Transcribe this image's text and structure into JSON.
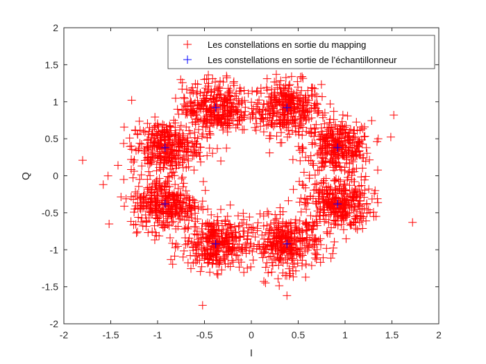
{
  "chart_data": {
    "type": "scatter",
    "title": "",
    "xlabel": "I",
    "ylabel": "Q",
    "xlim": [
      -2,
      2
    ],
    "ylim": [
      -2,
      2
    ],
    "xticks": [
      "-2",
      "-1.5",
      "-1",
      "-0.5",
      "0",
      "0.5",
      "1",
      "1.5",
      "2"
    ],
    "yticks": [
      "2",
      "1.5",
      "1",
      "0.5",
      "0",
      "-0.5",
      "-1",
      "-1.5",
      "-2"
    ],
    "grid": false,
    "legend_position": "top-right",
    "colors": {
      "mapping": "#ff0000",
      "sampler": "#0000ff",
      "axes": "#262626"
    },
    "series": [
      {
        "name": "Les constellations en sortie du mapping",
        "marker": "+",
        "color": "#ff0000",
        "clusters": [
          {
            "center": [
              0.38,
              0.92
            ],
            "spread": 0.18
          },
          {
            "center": [
              0.92,
              0.38
            ],
            "spread": 0.18
          },
          {
            "center": [
              0.92,
              -0.38
            ],
            "spread": 0.18
          },
          {
            "center": [
              0.38,
              -0.92
            ],
            "spread": 0.18
          },
          {
            "center": [
              -0.38,
              -0.92
            ],
            "spread": 0.18
          },
          {
            "center": [
              -0.92,
              -0.38
            ],
            "spread": 0.18
          },
          {
            "center": [
              -0.92,
              0.38
            ],
            "spread": 0.18
          },
          {
            "center": [
              -0.38,
              0.92
            ],
            "spread": 0.18
          }
        ],
        "points_per_cluster": 320,
        "outliers": [
          [
            -1.8,
            0.21
          ],
          [
            1.72,
            -0.63
          ],
          [
            -0.52,
            -1.75
          ],
          [
            0.38,
            -1.62
          ],
          [
            1.52,
            0.82
          ],
          [
            -1.58,
            -0.12
          ]
        ]
      },
      {
        "name": "Les constellations en sortie de l’échantillonneur",
        "marker": "+",
        "color": "#0000ff",
        "points": [
          [
            0.38,
            0.92
          ],
          [
            0.92,
            0.38
          ],
          [
            0.92,
            -0.38
          ],
          [
            0.38,
            -0.92
          ],
          [
            -0.38,
            -0.92
          ],
          [
            -0.92,
            -0.38
          ],
          [
            -0.92,
            0.38
          ],
          [
            -0.38,
            0.92
          ]
        ]
      }
    ]
  }
}
